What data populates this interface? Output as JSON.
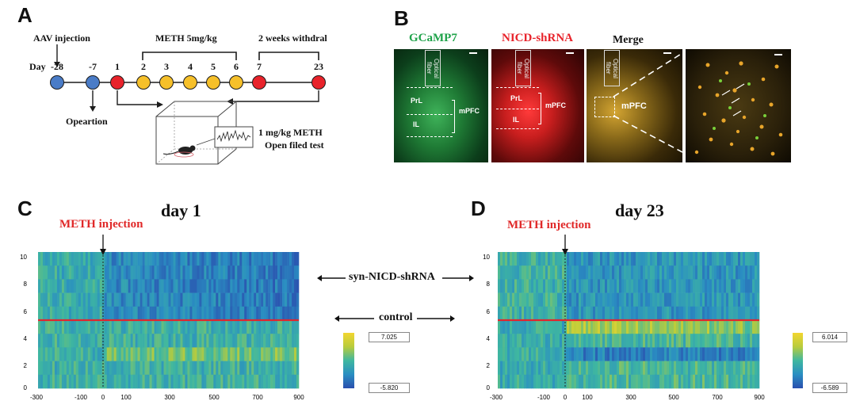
{
  "panels": {
    "a": "A",
    "b": "B",
    "c": "C",
    "d": "D"
  },
  "timeline": {
    "aav_label": "AAV injection",
    "meth_label": "METH 5mg/kg",
    "withdraw_label": "2 weeks withdral",
    "day_label": "Day",
    "operation_label": "Opeartion",
    "test_label_1": "1 mg/kg METH",
    "test_label_2": "Open filed test",
    "days": [
      {
        "label": "-28",
        "color": "#4a7cc7"
      },
      {
        "label": "-7",
        "color": "#4a7cc7"
      },
      {
        "label": "1",
        "color": "#e8232b"
      },
      {
        "label": "2",
        "color": "#f6c02a"
      },
      {
        "label": "3",
        "color": "#f6c02a"
      },
      {
        "label": "4",
        "color": "#f6c02a"
      },
      {
        "label": "5",
        "color": "#f6c02a"
      },
      {
        "label": "6",
        "color": "#f6c02a"
      },
      {
        "label": "7",
        "color": "#e8232b"
      },
      {
        "label": "23",
        "color": "#e8232b"
      }
    ]
  },
  "micrographs": {
    "gcamp_title": "GCaMP7",
    "nicd_title": "NICD-shRNA",
    "merge_title": "Merge",
    "optical_fiber": "Optical fiber",
    "prl": "PrL",
    "il": "IL",
    "mpfc": "mPFC",
    "colors": {
      "green": "#1fa34a",
      "red": "#e8232b"
    }
  },
  "heatmaps": {
    "left_title": "day 1",
    "right_title": "day 23",
    "meth_injection": "METH injection",
    "syn_label": "syn-NICD-shRNA",
    "control_label": "control",
    "y_ticks": [
      "10",
      "8",
      "6",
      "4",
      "2",
      "0"
    ],
    "x_ticks": [
      "-300",
      "-100",
      "0",
      "100",
      "300",
      "500",
      "700",
      "900"
    ],
    "left_cb_max": "7.025",
    "left_cb_min": "-5.820",
    "right_cb_max": "6.014",
    "right_cb_min": "-6.589"
  }
}
